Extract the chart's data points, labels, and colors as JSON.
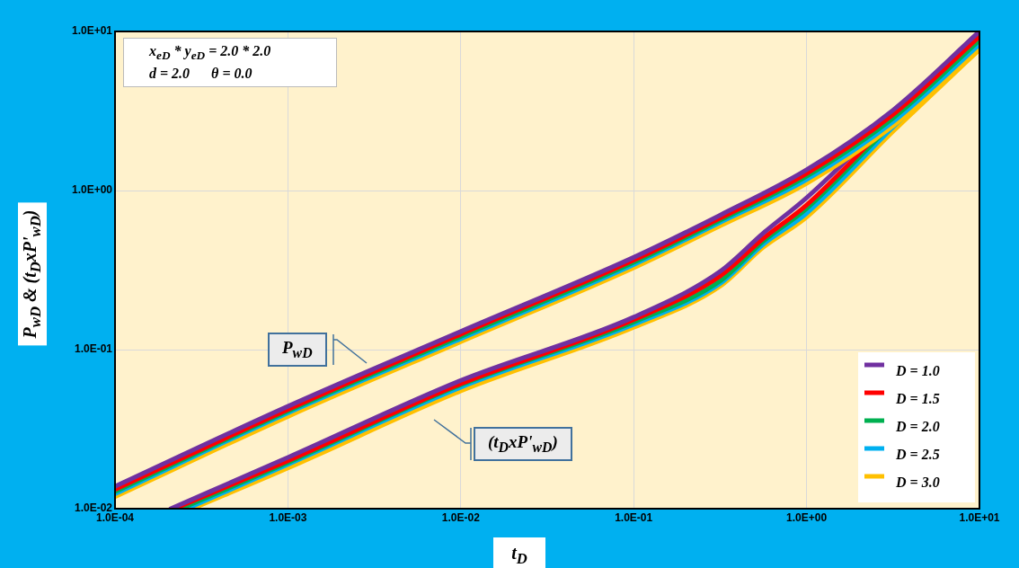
{
  "chart_data": {
    "type": "line",
    "xlabel": "t$_{D}$",
    "ylabel": "P$_{wD}$ & (t$_{D}$xP'$_{wD}$)",
    "log": "xy",
    "grid": true,
    "legend": "bottom right",
    "marker": "none",
    "line_style": "solid",
    "xlim": [
      0.0001,
      10
    ],
    "ylim": [
      0.01,
      10
    ],
    "xticks": [
      {
        "value": 0.0001,
        "label": "1.0E-04"
      },
      {
        "value": 0.001,
        "label": "1.0E-03"
      },
      {
        "value": 0.01,
        "label": "1.0E-02"
      },
      {
        "value": 0.1,
        "label": "1.0E-01"
      },
      {
        "value": 1,
        "label": "1.0E+00"
      },
      {
        "value": 10,
        "label": "1.0E+01"
      }
    ],
    "yticks": [
      {
        "value": 0.01,
        "label": "1.0E-02"
      },
      {
        "value": 0.1,
        "label": "1.0E-01"
      },
      {
        "value": 1,
        "label": "1.0E+00"
      },
      {
        "value": 10,
        "label": "1.0E+01"
      }
    ],
    "annotations": [
      "x$_{eD}$ * y$_{eD}$ = 2.0 * 2.0",
      "d = 2.0      θ = 0.0",
      "P$_{wD}$",
      "(t$_{D}$xP'$_{wD}$)"
    ],
    "series": [
      {
        "name": "D = 1.0",
        "color": "#7030a0",
        "x": [
          0.0001,
          0.001,
          0.01,
          0.1,
          0.316,
          1,
          3.16,
          10
        ],
        "values": [
          0.0138,
          0.044,
          0.13,
          0.38,
          0.7,
          1.35,
          3.2,
          10
        ]
      },
      {
        "name": "D = 1.5",
        "color": "#ff0000",
        "x": [
          0.0001,
          0.001,
          0.01,
          0.1,
          0.316,
          1,
          3.16,
          10
        ],
        "values": [
          0.0132,
          0.042,
          0.125,
          0.365,
          0.67,
          1.28,
          3.0,
          9.3
        ]
      },
      {
        "name": "D = 2.0",
        "color": "#00b050",
        "x": [
          0.0001,
          0.001,
          0.01,
          0.1,
          0.316,
          1,
          3.16,
          10
        ],
        "values": [
          0.0128,
          0.041,
          0.121,
          0.353,
          0.65,
          1.23,
          2.85,
          8.8
        ]
      },
      {
        "name": "D = 2.5",
        "color": "#00b0f0",
        "x": [
          0.0001,
          0.001,
          0.01,
          0.1,
          0.316,
          1,
          3.16,
          10
        ],
        "values": [
          0.0124,
          0.04,
          0.117,
          0.342,
          0.63,
          1.17,
          2.7,
          8.3
        ]
      },
      {
        "name": "D = 3.0",
        "color": "#ffc000",
        "x": [
          0.0001,
          0.001,
          0.01,
          0.1,
          0.316,
          1,
          3.16,
          10
        ],
        "values": [
          0.0119,
          0.038,
          0.112,
          0.327,
          0.6,
          1.11,
          2.55,
          7.7
        ]
      },
      {
        "color": "#7030a0",
        "x": [
          0.00021,
          0.001,
          0.01,
          0.1,
          0.316,
          0.562,
          1,
          3.16,
          10
        ],
        "values": [
          0.01,
          0.021,
          0.064,
          0.16,
          0.31,
          0.54,
          0.9,
          3.0,
          10
        ]
      },
      {
        "color": "#ff0000",
        "x": [
          0.00022,
          0.001,
          0.01,
          0.1,
          0.316,
          0.562,
          1,
          3.16,
          10
        ],
        "values": [
          0.01,
          0.02,
          0.061,
          0.154,
          0.29,
          0.5,
          0.81,
          2.8,
          9.3
        ]
      },
      {
        "color": "#00b050",
        "x": [
          0.00024,
          0.001,
          0.01,
          0.1,
          0.316,
          0.562,
          1,
          3.16,
          10
        ],
        "values": [
          0.01,
          0.0195,
          0.06,
          0.149,
          0.27,
          0.48,
          0.77,
          2.65,
          8.8
        ]
      },
      {
        "color": "#00b0f0",
        "x": [
          0.00026,
          0.001,
          0.01,
          0.1,
          0.316,
          0.562,
          1,
          3.16,
          10
        ],
        "values": [
          0.01,
          0.019,
          0.058,
          0.144,
          0.26,
          0.46,
          0.72,
          2.5,
          8.3
        ]
      },
      {
        "color": "#ffc000",
        "x": [
          0.00028,
          0.001,
          0.01,
          0.1,
          0.316,
          0.562,
          1,
          3.16,
          10
        ],
        "values": [
          0.01,
          0.018,
          0.055,
          0.138,
          0.25,
          0.44,
          0.68,
          2.35,
          7.7
        ]
      }
    ]
  }
}
